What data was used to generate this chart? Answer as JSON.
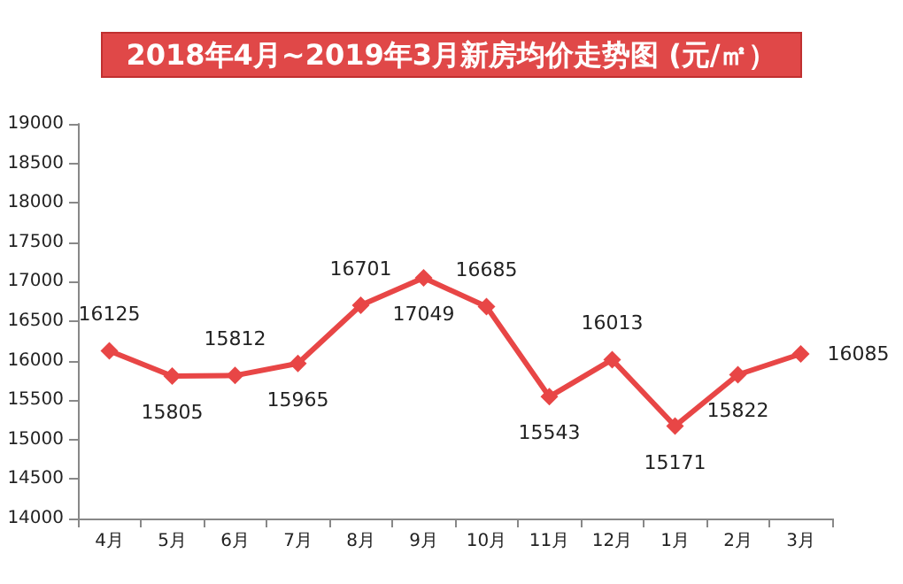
{
  "chart_data": {
    "type": "line",
    "title": "2018年4月~2019年3月新房均价走势图 (元/㎡）",
    "categories": [
      "4月",
      "5月",
      "6月",
      "7月",
      "8月",
      "9月",
      "10月",
      "11月",
      "12月",
      "1月",
      "2月",
      "3月"
    ],
    "series": [
      {
        "color": "#e84646",
        "values": [
          16125,
          15805,
          15812,
          15965,
          16701,
          17049,
          16685,
          15543,
          16013,
          15171,
          15822,
          16085
        ]
      }
    ],
    "ylim": [
      14000,
      19000
    ],
    "yticks": [
      14000,
      14500,
      15000,
      15500,
      16000,
      16500,
      17000,
      17500,
      18000,
      18500,
      19000
    ],
    "grid": false,
    "marker": "diamond",
    "line_style": "solid",
    "data_labels": true
  }
}
